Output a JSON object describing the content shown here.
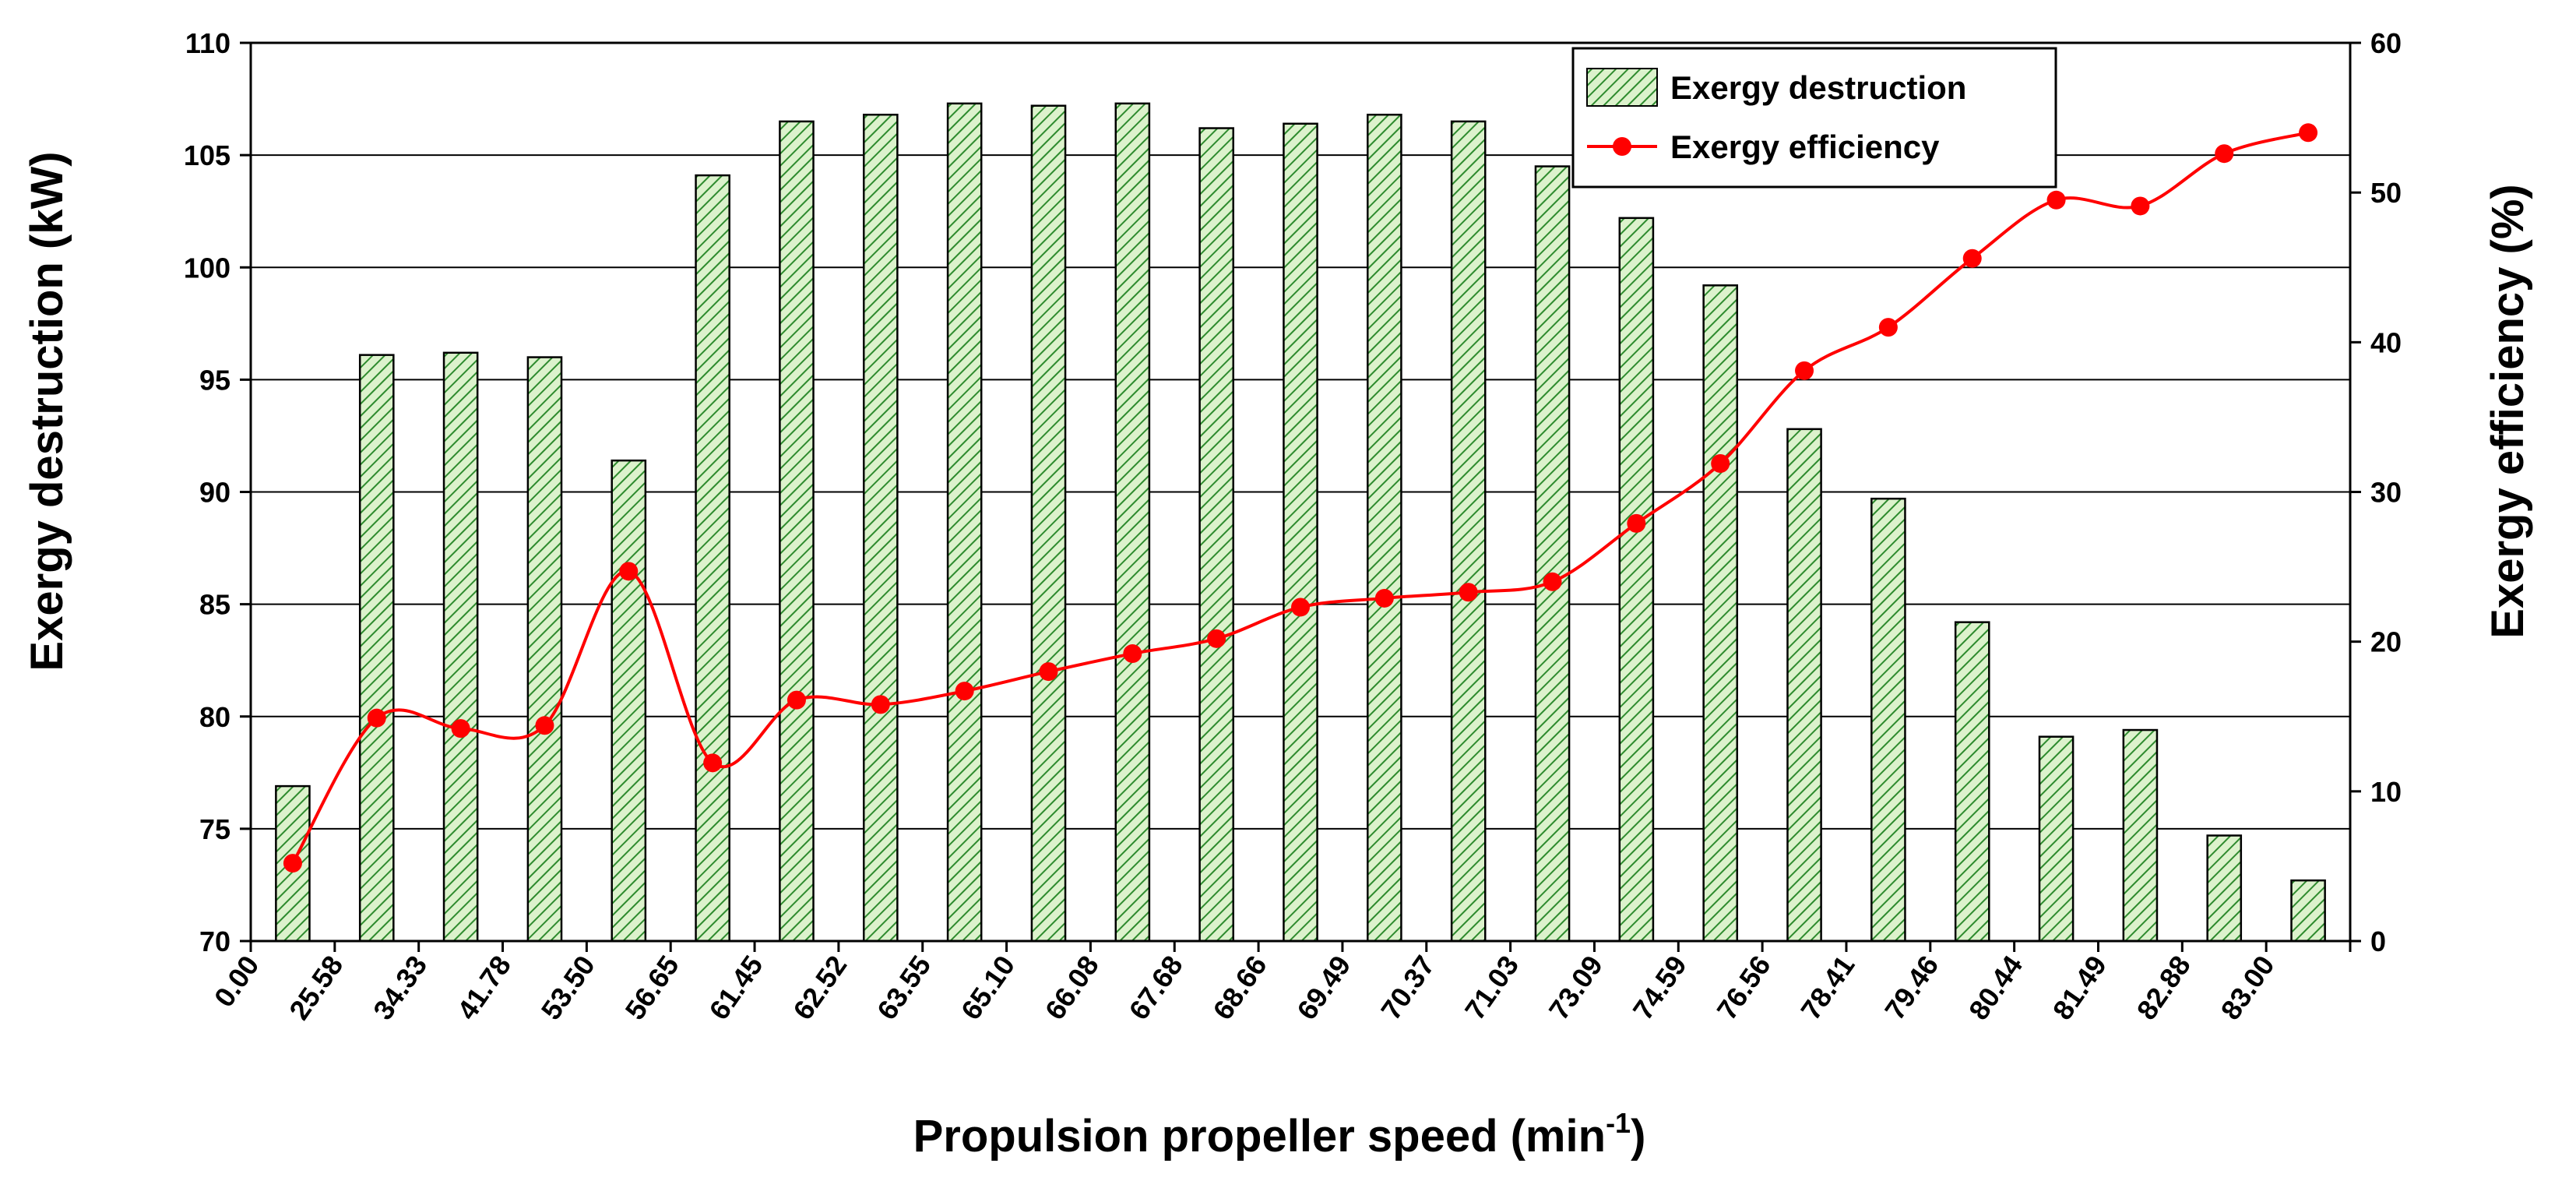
{
  "chart_data": {
    "type": "bar+line",
    "x_categories": [
      "0.00",
      "25.58",
      "34.33",
      "41.78",
      "53.50",
      "56.65",
      "61.45",
      "62.52",
      "63.55",
      "65.10",
      "66.08",
      "67.68",
      "68.66",
      "69.49",
      "70.37",
      "71.03",
      "73.09",
      "74.59",
      "76.56",
      "78.41",
      "79.46",
      "80.44",
      "81.49",
      "82.88",
      "83.00"
    ],
    "xlabel": "Propulsion propeller speed (min",
    "xlabel_sup": "-1",
    "xlabel_end": ")",
    "ylabel_left": "Exergy destruction (kW)",
    "ylabel_right": "Exergy efficiency (%)",
    "ylim_left": [
      70,
      110
    ],
    "yticks_left": [
      70,
      75,
      80,
      85,
      90,
      95,
      100,
      105,
      110
    ],
    "ylim_right": [
      0,
      60
    ],
    "yticks_right": [
      0,
      10,
      20,
      30,
      40,
      50,
      60
    ],
    "series": [
      {
        "name": "Exergy destruction",
        "type": "bar",
        "axis": "left",
        "color": "#2e8b2e",
        "fill": "#d8f0c8",
        "values": [
          76.9,
          96.1,
          96.2,
          96.0,
          91.4,
          104.1,
          106.5,
          106.8,
          107.3,
          107.2,
          107.3,
          106.2,
          106.4,
          106.8,
          106.5,
          104.5,
          102.2,
          99.2,
          92.8,
          89.7,
          84.2,
          79.1,
          79.4,
          74.7,
          72.7
        ]
      },
      {
        "name": "Exergy efficiency",
        "type": "line",
        "axis": "right",
        "color": "#ff0000",
        "values": [
          5.2,
          14.9,
          14.2,
          14.4,
          24.7,
          11.9,
          16.1,
          15.8,
          16.7,
          18.0,
          19.2,
          20.2,
          22.3,
          22.9,
          23.3,
          24.0,
          27.9,
          31.9,
          38.1,
          41.0,
          45.6,
          49.5,
          49.1,
          52.6,
          54.0
        ]
      }
    ],
    "legend_position": "top-right",
    "gridlines": "horizontal"
  }
}
